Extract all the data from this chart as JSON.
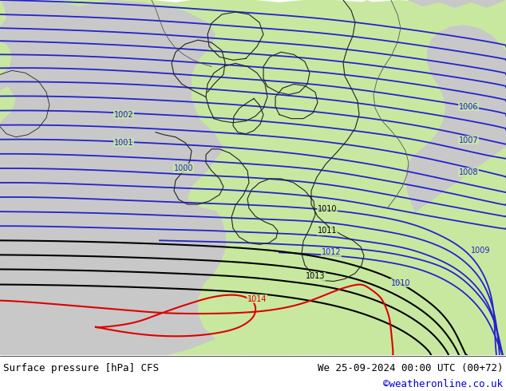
{
  "title_left": "Surface pressure [hPa] CFS",
  "title_right": "We 25-09-2024 00:00 UTC (00+72)",
  "credit": "©weatheronline.co.uk",
  "sea_color": "#c8c8c8",
  "land_color": "#c8e8a0",
  "bottom_bar_color": "#ffffff",
  "blue_line_color": "#2222cc",
  "black_line_color": "#000000",
  "red_line_color": "#dd0000",
  "coast_color": "#555555",
  "border_color": "#222222",
  "font_size_labels": 7,
  "font_size_bottom": 9,
  "font_size_credit": 9,
  "fig_width": 6.34,
  "fig_height": 4.9,
  "dpi": 100
}
